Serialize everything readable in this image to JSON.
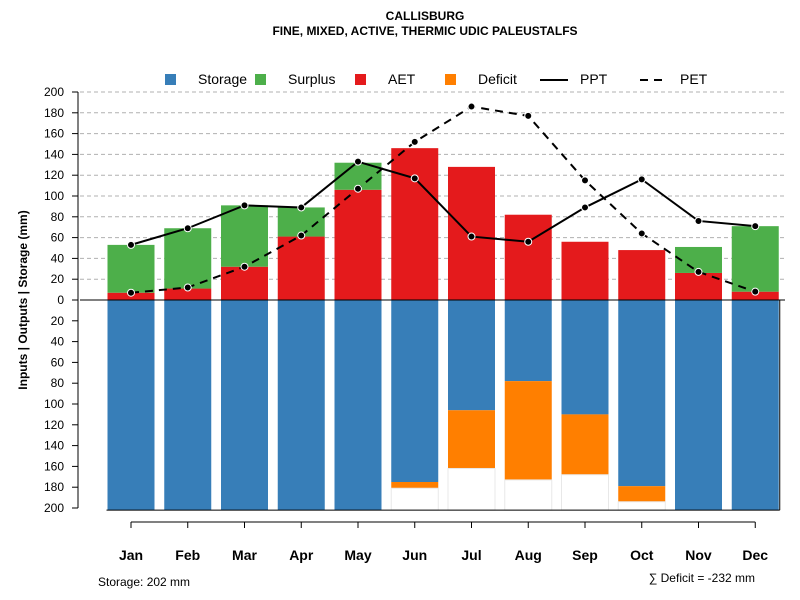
{
  "chart_data": {
    "type": "bar",
    "title": "CALLISBURG",
    "subtitle": "FINE, MIXED, ACTIVE, THERMIC UDIC PALEUSTALFS",
    "ylabel": "Inputs | Outputs | Storage    (mm)",
    "ylim": [
      -200,
      200
    ],
    "yticks": [
      200,
      180,
      160,
      140,
      120,
      100,
      80,
      60,
      40,
      20,
      0,
      20,
      40,
      60,
      80,
      100,
      120,
      140,
      160,
      180,
      200
    ],
    "categories": [
      "Jan",
      "Feb",
      "Mar",
      "Apr",
      "May",
      "Jun",
      "Jul",
      "Aug",
      "Sep",
      "Oct",
      "Nov",
      "Dec"
    ],
    "colors": {
      "storage": "#377EB8",
      "surplus": "#4DAF4A",
      "aet": "#E41A1C",
      "deficit": "#FF7F00"
    },
    "legend": [
      {
        "key": "storage",
        "label": "Storage",
        "kind": "box"
      },
      {
        "key": "surplus",
        "label": "Surplus",
        "kind": "box"
      },
      {
        "key": "aet",
        "label": "AET",
        "kind": "box"
      },
      {
        "key": "deficit",
        "label": "Deficit",
        "kind": "box"
      },
      {
        "key": "ppt",
        "label": "PPT",
        "kind": "solid"
      },
      {
        "key": "pet",
        "label": "PET",
        "kind": "dashed"
      }
    ],
    "legend_position": "top",
    "series": [
      {
        "name": "AET",
        "values": [
          7,
          11,
          32,
          61,
          106,
          146,
          128,
          82,
          56,
          48,
          26,
          8
        ]
      },
      {
        "name": "Surplus",
        "values": [
          46,
          58,
          59,
          28,
          26,
          0,
          0,
          0,
          0,
          0,
          25,
          63
        ]
      },
      {
        "name": "Storage",
        "values": [
          202,
          202,
          202,
          202,
          202,
          175,
          106,
          78,
          110,
          179,
          202,
          202
        ]
      },
      {
        "name": "Deficit",
        "values": [
          0,
          0,
          0,
          0,
          0,
          6,
          56,
          95,
          58,
          15,
          0,
          0
        ]
      },
      {
        "name": "PPT",
        "values": [
          53,
          69,
          91,
          89,
          133,
          117,
          61,
          56,
          89,
          116,
          76,
          71
        ]
      },
      {
        "name": "PET",
        "values": [
          7,
          12,
          32,
          62,
          107,
          152,
          186,
          177,
          115,
          64,
          27,
          8
        ]
      }
    ],
    "storage_capacity": 202,
    "storage_note": "Storage: 202 mm",
    "deficit_note": "∑ Deficit = -232 mm"
  }
}
